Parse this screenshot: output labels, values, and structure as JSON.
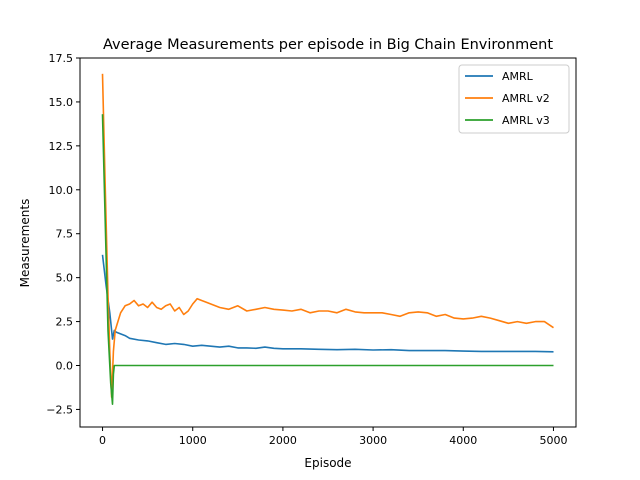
{
  "chart_data": {
    "type": "line",
    "title": "Average Measurements per episode in Big Chain Environment",
    "xlabel": "Episode",
    "ylabel": "Measurements",
    "xlim": [
      -250,
      5250
    ],
    "ylim": [
      -3.5,
      17.5
    ],
    "xticks": [
      0,
      1000,
      2000,
      3000,
      4000,
      5000
    ],
    "xtick_labels": [
      "0",
      "1000",
      "2000",
      "3000",
      "4000",
      "5000"
    ],
    "yticks": [
      -2.5,
      0.0,
      2.5,
      5.0,
      7.5,
      10.0,
      12.5,
      15.0,
      17.5
    ],
    "ytick_labels": [
      "−2.5",
      "0.0",
      "2.5",
      "5.0",
      "7.5",
      "10.0",
      "12.5",
      "15.0",
      "17.5"
    ],
    "grid": false,
    "legend_position": "top-right",
    "series": [
      {
        "name": "AMRL",
        "color": "#1f77b4",
        "x": [
          0,
          40,
          80,
          110,
          130,
          150,
          200,
          250,
          300,
          400,
          500,
          600,
          700,
          800,
          900,
          1000,
          1100,
          1200,
          1300,
          1400,
          1500,
          1600,
          1700,
          1800,
          1900,
          2000,
          2200,
          2400,
          2600,
          2800,
          3000,
          3200,
          3400,
          3600,
          3800,
          4000,
          4200,
          4400,
          4600,
          4800,
          5000
        ],
        "y": [
          6.3,
          4.5,
          3.0,
          1.5,
          2.0,
          1.9,
          1.8,
          1.7,
          1.55,
          1.45,
          1.4,
          1.3,
          1.2,
          1.25,
          1.2,
          1.1,
          1.15,
          1.1,
          1.05,
          1.1,
          1.0,
          1.0,
          0.98,
          1.05,
          0.98,
          0.95,
          0.95,
          0.92,
          0.9,
          0.92,
          0.88,
          0.9,
          0.85,
          0.85,
          0.85,
          0.82,
          0.8,
          0.8,
          0.8,
          0.8,
          0.78
        ]
      },
      {
        "name": "AMRL v2",
        "color": "#ff7f0e",
        "x": [
          0,
          30,
          60,
          80,
          100,
          120,
          140,
          170,
          200,
          250,
          300,
          350,
          400,
          450,
          500,
          550,
          600,
          650,
          700,
          750,
          800,
          850,
          900,
          950,
          1000,
          1050,
          1100,
          1150,
          1200,
          1300,
          1400,
          1500,
          1600,
          1700,
          1800,
          1900,
          2000,
          2100,
          2200,
          2300,
          2400,
          2500,
          2600,
          2700,
          2800,
          2900,
          3000,
          3100,
          3200,
          3300,
          3400,
          3500,
          3600,
          3700,
          3800,
          3900,
          4000,
          4100,
          4200,
          4300,
          4400,
          4500,
          4600,
          4700,
          4800,
          4900,
          5000
        ],
        "y": [
          16.6,
          10.0,
          4.0,
          0.8,
          -1.8,
          0.8,
          2.0,
          2.5,
          3.0,
          3.4,
          3.5,
          3.7,
          3.4,
          3.5,
          3.3,
          3.6,
          3.3,
          3.2,
          3.4,
          3.5,
          3.1,
          3.3,
          2.9,
          3.1,
          3.5,
          3.8,
          3.7,
          3.6,
          3.5,
          3.3,
          3.2,
          3.4,
          3.1,
          3.2,
          3.3,
          3.2,
          3.15,
          3.1,
          3.2,
          3.0,
          3.1,
          3.1,
          3.0,
          3.2,
          3.05,
          3.0,
          3.0,
          3.0,
          2.9,
          2.8,
          3.0,
          3.05,
          3.0,
          2.8,
          2.9,
          2.7,
          2.65,
          2.7,
          2.8,
          2.7,
          2.55,
          2.4,
          2.5,
          2.4,
          2.5,
          2.5,
          2.15
        ]
      },
      {
        "name": "AMRL v3",
        "color": "#2ca02c",
        "x": [
          0,
          30,
          60,
          90,
          110,
          120,
          130,
          150,
          200,
          500,
          1000,
          2000,
          3000,
          4000,
          5000
        ],
        "y": [
          14.3,
          8.0,
          2.0,
          -1.0,
          -2.2,
          -0.5,
          0.0,
          0.0,
          0.0,
          0.0,
          0.0,
          0.0,
          0.0,
          0.0,
          0.0
        ]
      }
    ]
  }
}
